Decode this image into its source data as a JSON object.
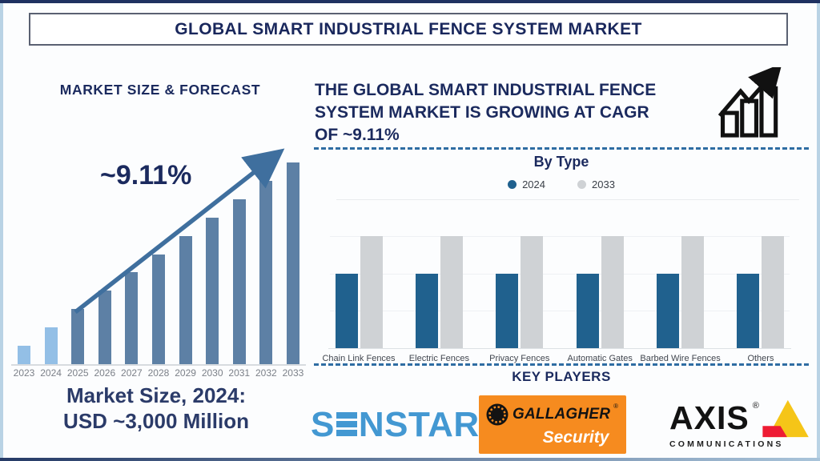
{
  "page": {
    "title": "GLOBAL SMART INDUSTRIAL FENCE SYSTEM MARKET"
  },
  "left_panel": {
    "heading": "MARKET SIZE & FORECAST",
    "cagr_annotation": "~9.11%",
    "market_size_line1": "Market Size, 2024:",
    "market_size_line2": "USD ~3,000 Million"
  },
  "right_panel": {
    "growth_heading_lines": [
      "THE GLOBAL SMART INDUSTRIAL FENCE",
      "SYSTEM MARKET IS GROWING AT CAGR",
      "OF ~9.11%"
    ],
    "by_type_heading": "By Type",
    "key_players_heading": "KEY PLAYERS",
    "players": {
      "senstar": {
        "name": "SENSTAR",
        "display_prefix": "S",
        "display_suffix": "NSTAR",
        "reg": "®"
      },
      "gallagher": {
        "name": "GALLAGHER",
        "reg": "®",
        "sub": "Security"
      },
      "axis": {
        "name": "AXIS",
        "reg": "®",
        "sub": "COMMUNICATIONS"
      }
    }
  },
  "colors": {
    "navy_text": "#1b2a5e",
    "forecast_bar_highlight": "#93bfe6",
    "forecast_bar_default": "#5d80a5",
    "arrow": "#3f6f9e",
    "series_2024": "#20618e",
    "series_2033": "#cfd2d5",
    "dashed_separator": "#2f6da3",
    "senstar_blue": "#4398d2",
    "gallagher_orange": "#f68b1f",
    "axis_yellow": "#f5c518",
    "axis_red": "#ee1c33"
  },
  "chart_data": [
    {
      "type": "bar",
      "title": "MARKET SIZE & FORECAST",
      "categories": [
        "2023",
        "2024",
        "2025",
        "2026",
        "2027",
        "2028",
        "2029",
        "2030",
        "2031",
        "2032",
        "2033"
      ],
      "values": [
        1,
        2,
        3,
        4,
        5,
        6,
        7,
        8,
        9,
        10,
        11
      ],
      "units": "relative height, no y-axis shown",
      "ylim": [
        0,
        11
      ],
      "grid": false,
      "annotation": "~9.11% CAGR arrow over bars",
      "note": "Market Size, 2024: USD ~3,000 Million",
      "bar_colors": [
        "#93bfe6",
        "#93bfe6",
        "#5d80a5",
        "#5d80a5",
        "#5d80a5",
        "#5d80a5",
        "#5d80a5",
        "#5d80a5",
        "#5d80a5",
        "#5d80a5",
        "#5d80a5"
      ]
    },
    {
      "type": "bar",
      "title": "By Type",
      "categories": [
        "Chain Link Fences",
        "Electric Fences",
        "Privacy Fences",
        "Automatic Gates",
        "Barbed Wire Fences",
        "Others"
      ],
      "series": [
        {
          "name": "2024",
          "color": "#20618e",
          "values": [
            2,
            2,
            2,
            2,
            2,
            2
          ]
        },
        {
          "name": "2033",
          "color": "#cfd2d5",
          "values": [
            3,
            3,
            3,
            3,
            3,
            3
          ]
        }
      ],
      "units": "relative height, no y-axis shown",
      "ylim": [
        0,
        3
      ],
      "grid": true,
      "legend_position": "top"
    }
  ]
}
